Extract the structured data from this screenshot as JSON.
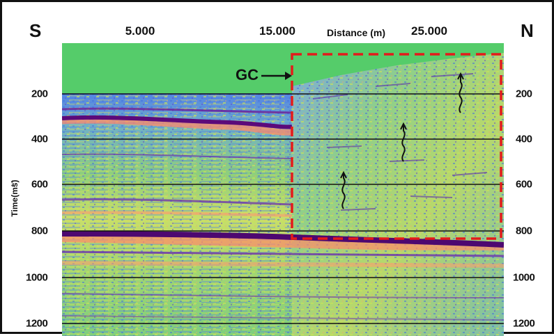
{
  "left_label": "S",
  "right_label": "N",
  "x_axis": {
    "title": "Distance (m)",
    "ticks": [
      "5.000",
      "15.000",
      "25.000"
    ]
  },
  "y_axis": {
    "title": "Time(ms)",
    "ticks": [
      "200",
      "400",
      "600",
      "800",
      "1000",
      "1200"
    ]
  },
  "annotation": {
    "label": "GC"
  },
  "colors": {
    "green_band": "#55cc6a",
    "dashed_box": "#e31b1b",
    "reflector": "#5b0a7a",
    "gridline": "#111111"
  }
}
